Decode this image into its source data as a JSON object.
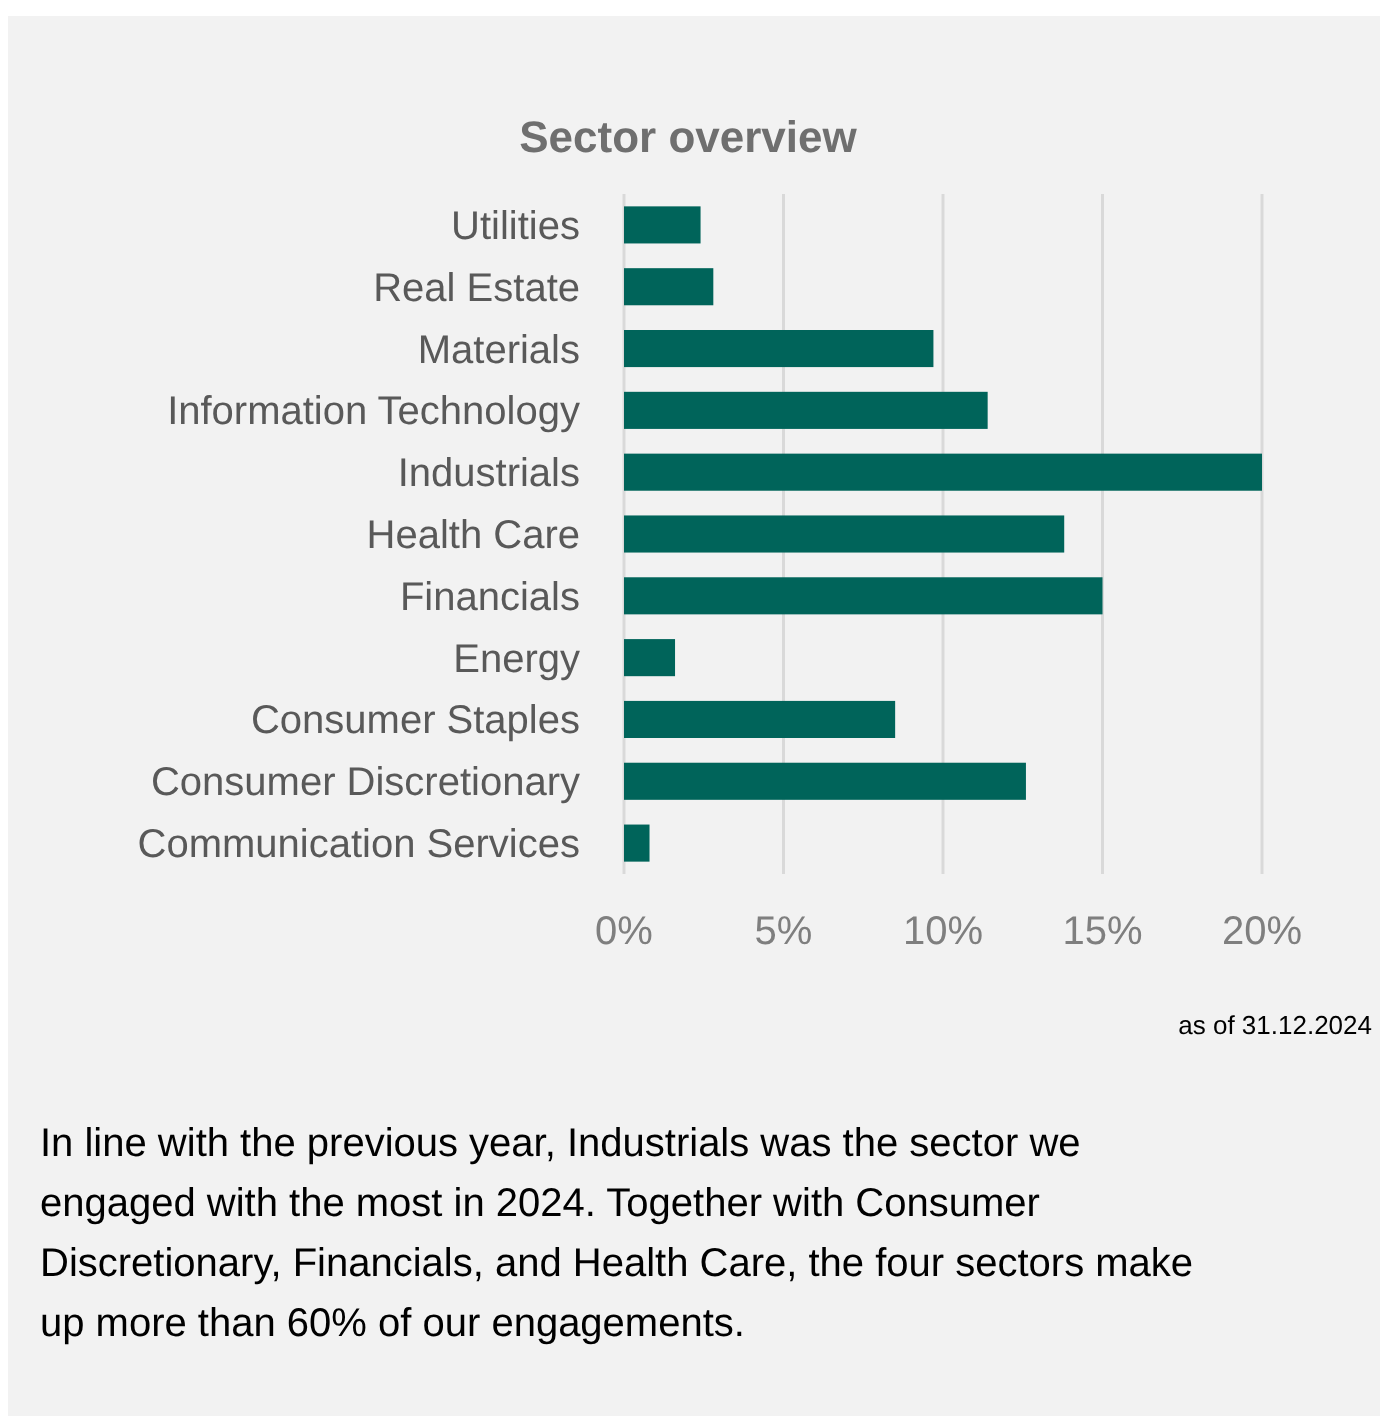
{
  "chart_data": {
    "type": "bar",
    "orientation": "horizontal",
    "title": "Sector overview",
    "categories": [
      "Utilities",
      "Real Estate",
      "Materials",
      "Information Technology",
      "Industrials",
      "Health Care",
      "Financials",
      "Energy",
      "Consumer Staples",
      "Consumer Discretionary",
      "Communication Services"
    ],
    "values": [
      2.4,
      2.8,
      9.7,
      11.4,
      20,
      13.8,
      15.0,
      1.6,
      8.5,
      12.6,
      0.8
    ],
    "color": "#00645a",
    "xlim": [
      0,
      20
    ],
    "xticks": [
      {
        "value": 0,
        "label": "0%"
      },
      {
        "value": 5,
        "label": "5%"
      },
      {
        "value": 10,
        "label": "10%"
      },
      {
        "value": 15,
        "label": "15%"
      },
      {
        "value": 20,
        "label": "20%"
      }
    ],
    "grid": "x",
    "annotations": [
      "as of 31.12.2024",
      "In line with the previous year, Industrials was the sector we engaged with the most in 2024. Together with Consumer Discretionary, Financials, and Health Care, the four sectors make up more than 60% of our engagements."
    ]
  }
}
